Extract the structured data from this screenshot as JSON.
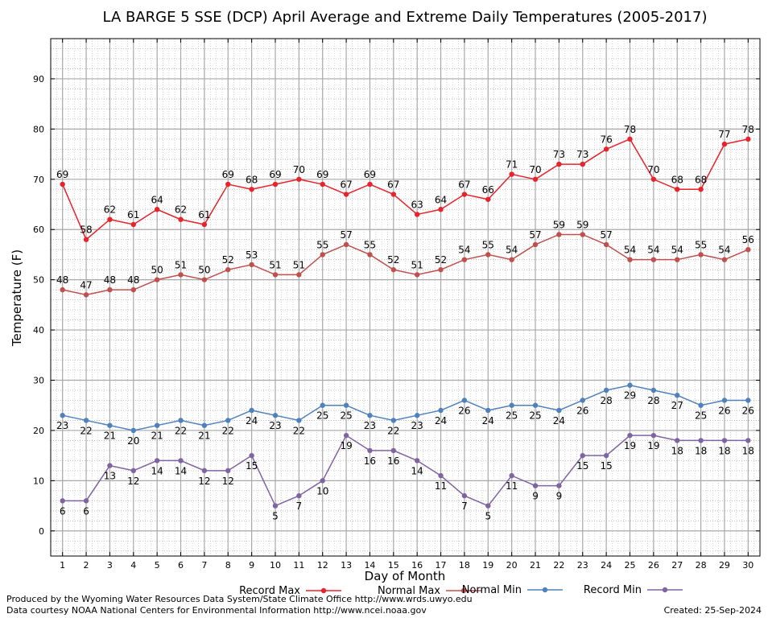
{
  "chart_data": {
    "type": "line",
    "title": "LA BARGE 5 SSE (DCP) April Average and Extreme Daily Temperatures (2005-2017)",
    "xlabel": "Day of Month",
    "ylabel": "Temperature (F)",
    "xlim": [
      0.5,
      30.5
    ],
    "ylim": [
      -5,
      98
    ],
    "y_ticks": [
      0,
      10,
      20,
      30,
      40,
      50,
      60,
      70,
      80,
      90
    ],
    "x": [
      1,
      2,
      3,
      4,
      5,
      6,
      7,
      8,
      9,
      10,
      11,
      12,
      13,
      14,
      15,
      16,
      17,
      18,
      19,
      20,
      21,
      22,
      23,
      24,
      25,
      26,
      27,
      28,
      29,
      30
    ],
    "grid": true,
    "legend_position": "bottom",
    "series": [
      {
        "name": "Record Max",
        "color": "#e8232b",
        "label_position": "above",
        "values": [
          69,
          58,
          62,
          61,
          64,
          62,
          61,
          69,
          68,
          69,
          70,
          69,
          67,
          69,
          67,
          63,
          64,
          67,
          66,
          71,
          70,
          73,
          73,
          76,
          78,
          70,
          68,
          68,
          77,
          78
        ]
      },
      {
        "name": "Normal Max",
        "color": "#c0504d",
        "label_position": "above",
        "values": [
          48,
          47,
          48,
          48,
          50,
          51,
          50,
          52,
          53,
          51,
          51,
          55,
          57,
          55,
          52,
          51,
          52,
          54,
          55,
          54,
          57,
          59,
          59,
          57,
          54,
          54,
          54,
          55,
          54,
          56
        ]
      },
      {
        "name": "Normal Min",
        "color": "#4f81bd",
        "label_position": "below",
        "values": [
          23,
          22,
          21,
          20,
          21,
          22,
          21,
          22,
          24,
          23,
          22,
          25,
          25,
          23,
          22,
          23,
          24,
          26,
          24,
          25,
          25,
          24,
          26,
          28,
          29,
          28,
          27,
          25,
          26,
          26
        ]
      },
      {
        "name": "Record Min",
        "color": "#8064a2",
        "label_position": "below",
        "values": [
          6,
          6,
          13,
          12,
          14,
          14,
          12,
          12,
          15,
          5,
          7,
          10,
          19,
          16,
          16,
          14,
          11,
          7,
          5,
          11,
          9,
          9,
          15,
          15,
          19,
          19,
          18,
          18,
          18,
          18
        ]
      }
    ]
  },
  "footer": {
    "line1": "Produced by the Wyoming Water Resources Data System/State Climate Office http://www.wrds.uwyo.edu",
    "line2": "Data courtesy NOAA National Centers for Environmental Information http://www.ncei.noaa.gov",
    "created": "Created:  25-Sep-2024"
  }
}
